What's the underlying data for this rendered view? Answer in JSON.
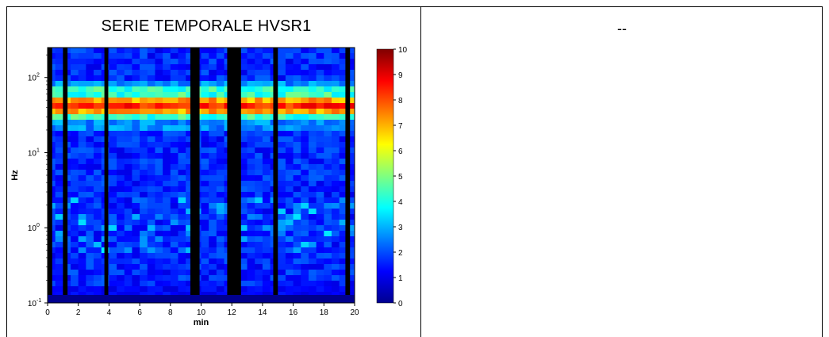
{
  "left_panel": {
    "title": "SERIE TEMPORALE HVSR1"
  },
  "right_panel": {
    "text": "--"
  },
  "chart_data": {
    "type": "heatmap",
    "title": "SERIE TEMPORALE HVSR1",
    "xlabel": "min",
    "ylabel": "Hz",
    "xlim": [
      0,
      20
    ],
    "ylim": [
      0.1,
      250
    ],
    "yscale": "log",
    "x_ticks": [
      "0",
      "2",
      "4",
      "6",
      "8",
      "10",
      "12",
      "14",
      "16",
      "18",
      "20"
    ],
    "y_ticks": [
      "10",
      "10",
      "10",
      "10"
    ],
    "y_tick_exponents": [
      "-1",
      "0",
      "1",
      "2"
    ],
    "colorbar": {
      "range": [
        0,
        10
      ],
      "ticks": [
        "0",
        "1",
        "2",
        "3",
        "4",
        "5",
        "6",
        "7",
        "8",
        "9",
        "10"
      ],
      "colormap": "jet"
    },
    "peak_band_hz": 43,
    "peak_value": 9,
    "blanked_windows_min": [
      [
        0,
        0.3
      ],
      [
        1.0,
        1.3
      ],
      [
        3.7,
        3.95
      ],
      [
        9.3,
        9.9
      ],
      [
        11.7,
        12.6
      ],
      [
        14.7,
        15.0
      ],
      [
        19.4,
        19.7
      ]
    ],
    "grid": false
  },
  "colors": {
    "blank": "#000000",
    "background": "#ffffff"
  }
}
